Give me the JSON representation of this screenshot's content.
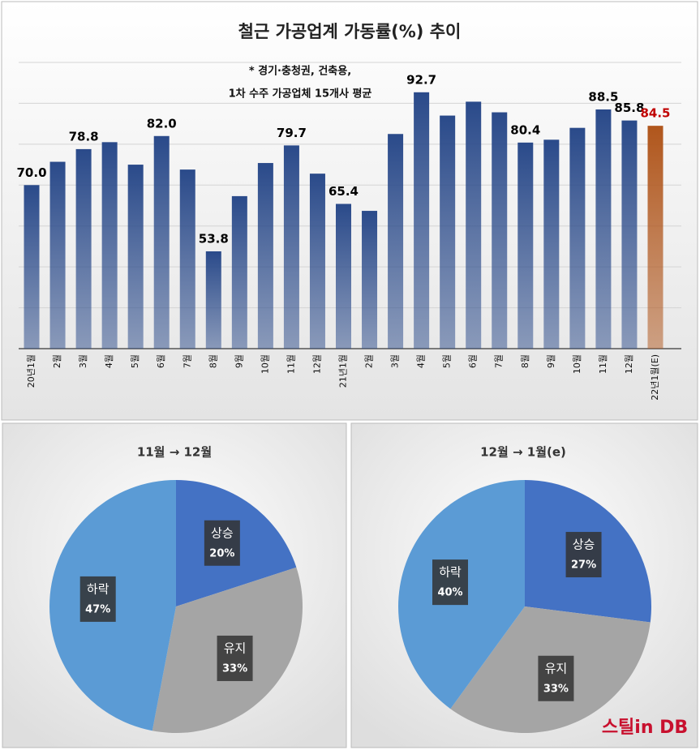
{
  "chart_data": [
    {
      "type": "bar",
      "title": "철근 가공업계 가동률(%) 추이",
      "annotations": [
        "* 경기·충청권, 건축용,",
        "1차 수주 가공업체 15개사 평균"
      ],
      "categories": [
        "20년1월",
        "2월",
        "3월",
        "4월",
        "5월",
        "6월",
        "7월",
        "8월",
        "9월",
        "10월",
        "11월",
        "12월",
        "21년1월",
        "2월",
        "3월",
        "4월",
        "5월",
        "6월",
        "7월",
        "8월",
        "9월",
        "10월",
        "11월",
        "12월",
        "22년1월(E)"
      ],
      "values": [
        70.0,
        75.7,
        78.8,
        80.5,
        75.0,
        82.0,
        73.8,
        53.8,
        67.3,
        75.4,
        79.7,
        72.8,
        65.4,
        63.7,
        82.5,
        92.7,
        87.0,
        90.4,
        87.8,
        80.4,
        81.1,
        84.0,
        88.5,
        85.8,
        84.5
      ],
      "value_labels": [
        "70.0",
        null,
        "78.8",
        null,
        null,
        "82.0",
        null,
        "53.8",
        null,
        null,
        "79.7",
        null,
        "65.4",
        null,
        null,
        "92.7",
        null,
        null,
        null,
        "80.4",
        null,
        null,
        "88.5",
        "85.8",
        "84.5"
      ],
      "colors": [
        "#2a4a8a",
        "#2a4a8a",
        "#2a4a8a",
        "#2a4a8a",
        "#2a4a8a",
        "#2a4a8a",
        "#2a4a8a",
        "#2a4a8a",
        "#2a4a8a",
        "#2a4a8a",
        "#2a4a8a",
        "#2a4a8a",
        "#2a4a8a",
        "#2a4a8a",
        "#2a4a8a",
        "#2a4a8a",
        "#2a4a8a",
        "#2a4a8a",
        "#2a4a8a",
        "#2a4a8a",
        "#2a4a8a",
        "#2a4a8a",
        "#2a4a8a",
        "#2a4a8a",
        "#b0561c"
      ],
      "label_colors": [
        "#000",
        "#000",
        "#000",
        "#000",
        "#000",
        "#000",
        "#000",
        "#000",
        "#000",
        "#000",
        "#000",
        "#000",
        "#000",
        "#000",
        "#000",
        "#000",
        "#000",
        "#000",
        "#000",
        "#000",
        "#000",
        "#000",
        "#000",
        "#000",
        "#c00000"
      ],
      "ylim": [
        30,
        100
      ],
      "yticks": [
        30,
        40,
        50,
        60,
        70,
        80,
        90,
        100
      ],
      "grid": true
    },
    {
      "type": "pie",
      "title": "11월 → 12월",
      "categories": [
        "상승",
        "유지",
        "하락"
      ],
      "values": [
        20,
        33,
        47
      ],
      "value_labels": [
        "20%",
        "33%",
        "47%"
      ],
      "colors": [
        "#4472c4",
        "#a5a5a5",
        "#5b9bd5"
      ]
    },
    {
      "type": "pie",
      "title": "12월 → 1월(e)",
      "categories": [
        "상승",
        "유지",
        "하락"
      ],
      "values": [
        27,
        33,
        40
      ],
      "value_labels": [
        "27%",
        "33%",
        "40%"
      ],
      "colors": [
        "#4472c4",
        "#a5a5a5",
        "#5b9bd5"
      ]
    }
  ],
  "logo": "스틸in DB"
}
